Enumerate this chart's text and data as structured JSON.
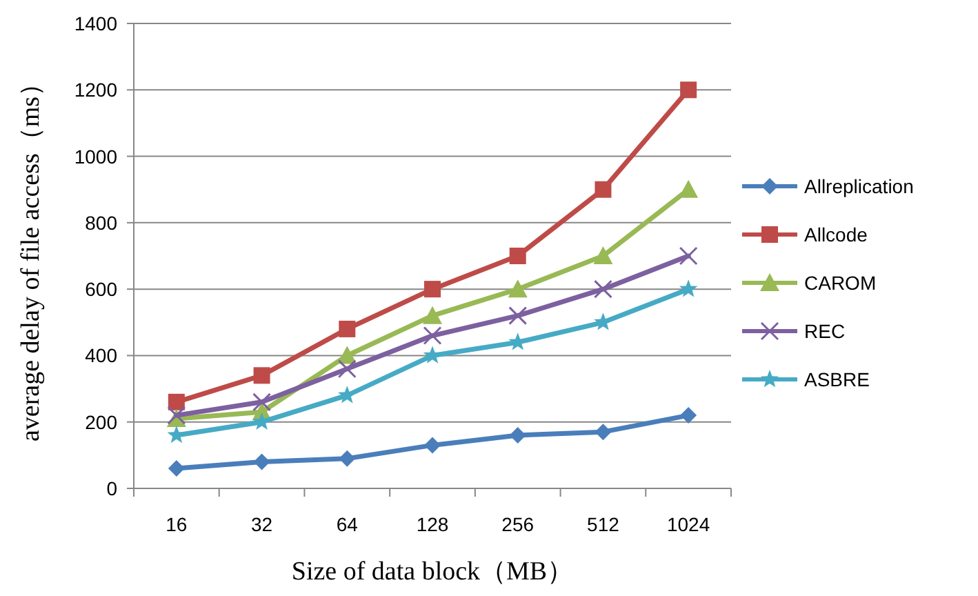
{
  "chart_data": {
    "type": "line",
    "xlabel": "Size of data block（MB）",
    "ylabel": "average delay of file access（ms）",
    "categories": [
      "16",
      "32",
      "64",
      "128",
      "256",
      "512",
      "1024"
    ],
    "series": [
      {
        "name": "Allreplication",
        "color": "#4a7ebb",
        "marker": "diamond",
        "values": [
          60,
          80,
          90,
          130,
          160,
          170,
          220
        ]
      },
      {
        "name": "Allcode",
        "color": "#be4b48",
        "marker": "square",
        "values": [
          260,
          340,
          480,
          600,
          700,
          900,
          1200
        ]
      },
      {
        "name": "CAROM",
        "color": "#98b954",
        "marker": "triangle",
        "values": [
          210,
          230,
          400,
          520,
          600,
          700,
          900
        ]
      },
      {
        "name": "REC",
        "color": "#7d60a0",
        "marker": "cross",
        "values": [
          220,
          260,
          360,
          460,
          520,
          600,
          700
        ]
      },
      {
        "name": "ASBRE",
        "color": "#46aac5",
        "marker": "star",
        "values": [
          160,
          200,
          280,
          400,
          440,
          500,
          600
        ]
      }
    ],
    "ylim": [
      0,
      1400
    ],
    "yticks": [
      0,
      200,
      400,
      600,
      800,
      1000,
      1200,
      1400
    ],
    "grid": "y",
    "legend": "right"
  }
}
